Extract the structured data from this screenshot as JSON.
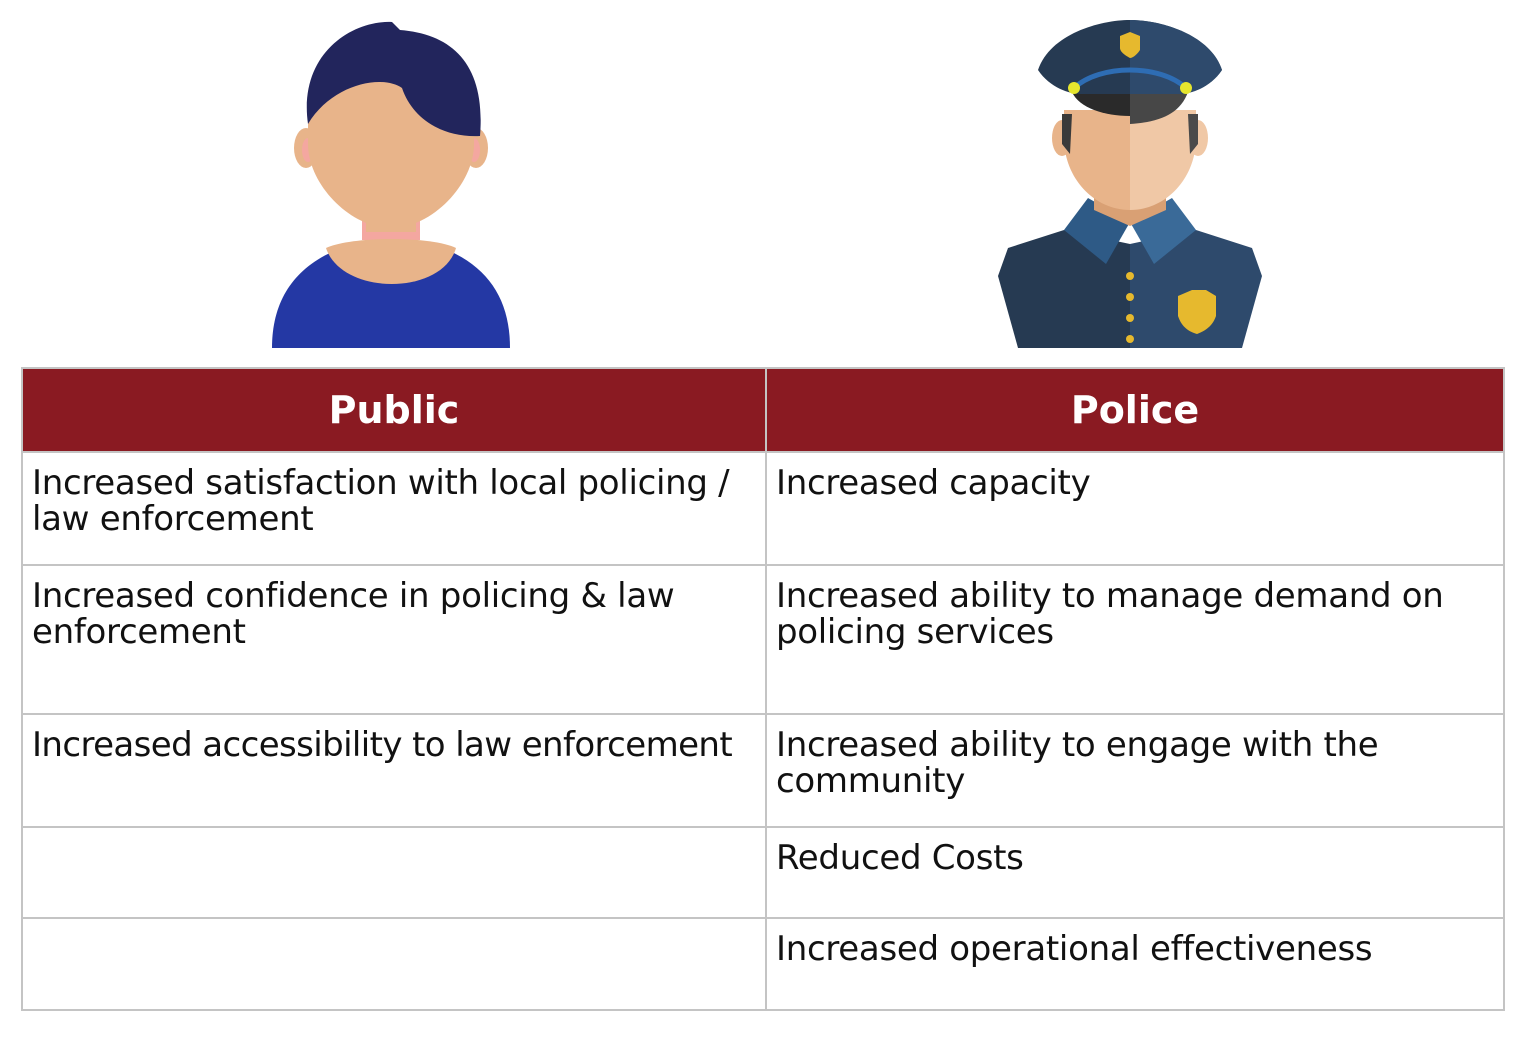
{
  "colors": {
    "header_bg": "#8a1a22",
    "header_text": "#ffffff",
    "border": "#c4c4c4",
    "public_hair": "#22255c",
    "public_skin": "#e8b48a",
    "public_shirt": "#2438a4",
    "police_uniform": "#263a52",
    "police_collar": "#2e5a86",
    "badge": "#e6b92e"
  },
  "icons": {
    "public": "person-icon",
    "police": "police-officer-icon"
  },
  "table": {
    "headers": [
      "Public",
      "Police"
    ],
    "rows": [
      [
        "Increased satisfaction with local policing / law enforcement",
        "Increased capacity"
      ],
      [
        "Increased confidence in policing & law enforcement",
        "Increased ability to manage demand on policing services"
      ],
      [
        "Increased accessibility to law enforcement",
        "Increased ability to engage with the community"
      ],
      [
        "",
        "Reduced Costs"
      ],
      [
        "",
        "Increased operational effectiveness"
      ]
    ]
  }
}
